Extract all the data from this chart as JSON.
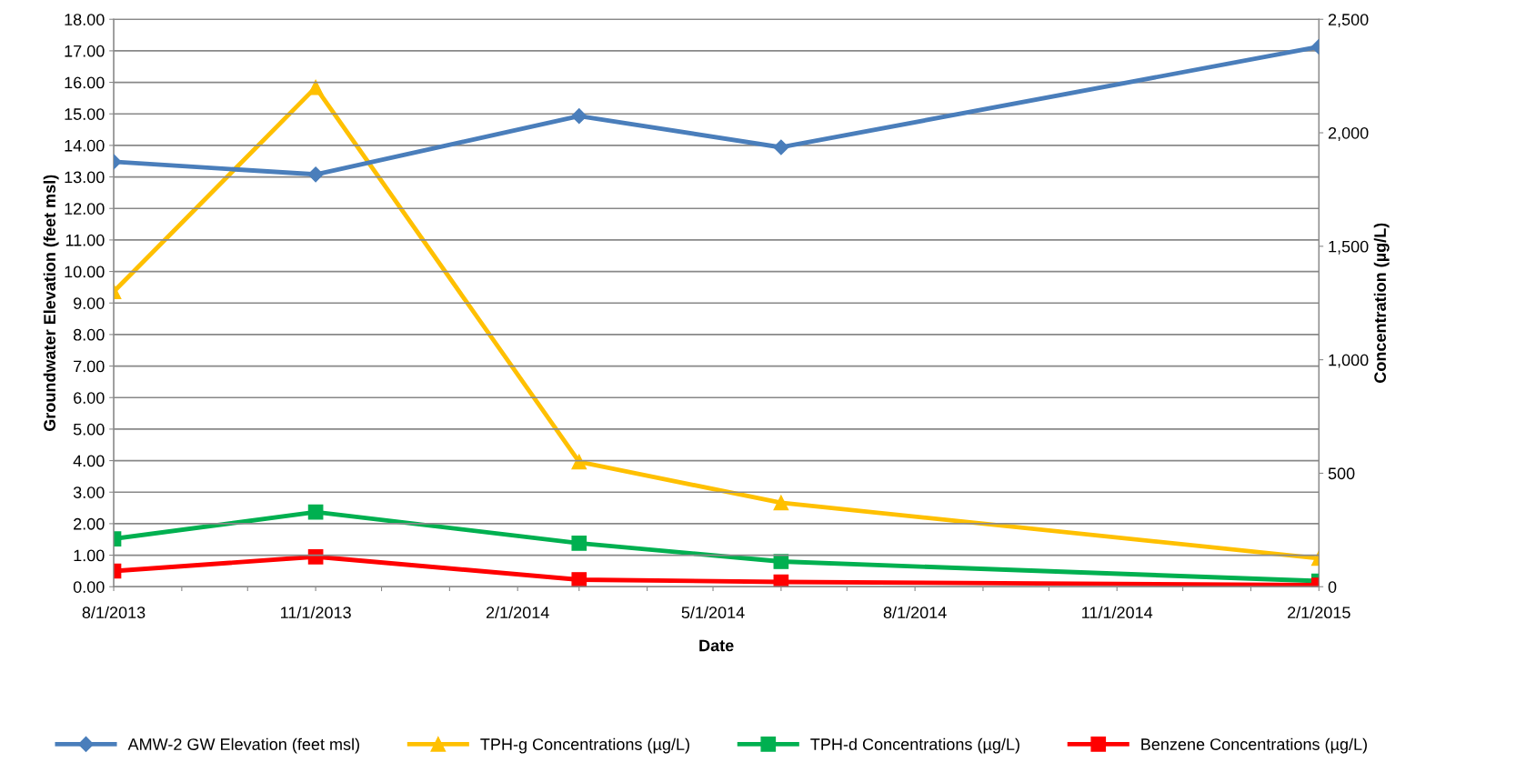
{
  "chart_data": {
    "type": "line",
    "xlabel": "Date",
    "ylabel": "Groundwater Elevation (feet msl)",
    "y2label": "Concentration (µg/L)",
    "x": [
      "2013-08-01",
      "2013-11-01",
      "2014-03-01",
      "2014-06-01",
      "2015-02-01"
    ],
    "series": [
      {
        "name": "AMW-2 GW Elevation (feet msl)",
        "color": "#4a7ebb",
        "marker": "diamond",
        "values": [
          13.48,
          13.08,
          14.93,
          13.94,
          17.13
        ]
      },
      {
        "name": "TPH-g Concentrations (µg/L)",
        "color": "#ffc000",
        "marker": "triangle",
        "axis": "y2",
        "values": [
          1300,
          2200,
          550,
          370,
          125
        ]
      },
      {
        "name": "TPH-d Concentrations (µg/L)",
        "color": "#00b050",
        "marker": "square",
        "axis": "y2",
        "values": [
          211,
          329,
          192,
          111,
          25
        ]
      },
      {
        "name": "Benzene Concentrations (µg/L)",
        "color": "#ff0000",
        "marker": "square",
        "axis": "y2",
        "values": [
          69,
          132,
          31,
          21,
          7
        ]
      }
    ],
    "xlim": [
      "2013-08-01",
      "2015-02-01"
    ],
    "xticks": [
      {
        "value": "2013-08-01",
        "label": "8/1/2013"
      },
      {
        "value": "2013-09-01",
        "label": null
      },
      {
        "value": "2013-10-01",
        "label": null
      },
      {
        "value": "2013-11-01",
        "label": "11/1/2013"
      },
      {
        "value": "2013-12-01",
        "label": null
      },
      {
        "value": "2014-01-01",
        "label": null
      },
      {
        "value": "2014-02-01",
        "label": "2/1/2014"
      },
      {
        "value": "2014-03-01",
        "label": null
      },
      {
        "value": "2014-04-01",
        "label": null
      },
      {
        "value": "2014-05-01",
        "label": "5/1/2014"
      },
      {
        "value": "2014-06-01",
        "label": null
      },
      {
        "value": "2014-07-01",
        "label": null
      },
      {
        "value": "2014-08-01",
        "label": "8/1/2014"
      },
      {
        "value": "2014-09-01",
        "label": null
      },
      {
        "value": "2014-10-01",
        "label": null
      },
      {
        "value": "2014-11-01",
        "label": "11/1/2014"
      },
      {
        "value": "2014-12-01",
        "label": null
      },
      {
        "value": "2015-01-01",
        "label": null
      },
      {
        "value": "2015-02-01",
        "label": "2/1/2015"
      }
    ],
    "ylim": [
      0,
      18
    ],
    "yticks": [
      {
        "value": 0,
        "label": "0.00"
      },
      {
        "value": 1,
        "label": "1.00"
      },
      {
        "value": 2,
        "label": "2.00"
      },
      {
        "value": 3,
        "label": "3.00"
      },
      {
        "value": 4,
        "label": "4.00"
      },
      {
        "value": 5,
        "label": "5.00"
      },
      {
        "value": 6,
        "label": "6.00"
      },
      {
        "value": 7,
        "label": "7.00"
      },
      {
        "value": 8,
        "label": "8.00"
      },
      {
        "value": 9,
        "label": "9.00"
      },
      {
        "value": 10,
        "label": "10.00"
      },
      {
        "value": 11,
        "label": "11.00"
      },
      {
        "value": 12,
        "label": "12.00"
      },
      {
        "value": 13,
        "label": "13.00"
      },
      {
        "value": 14,
        "label": "14.00"
      },
      {
        "value": 15,
        "label": "15.00"
      },
      {
        "value": 16,
        "label": "16.00"
      },
      {
        "value": 17,
        "label": "17.00"
      },
      {
        "value": 18,
        "label": "18.00"
      }
    ],
    "y2lim": [
      0,
      2500
    ],
    "y2ticks": [
      0,
      500,
      {
        "value": 1000,
        "label": "1,000"
      },
      {
        "value": 1500,
        "label": "1,500"
      },
      {
        "value": 2000,
        "label": "2,000"
      },
      {
        "value": 2500,
        "label": "2,500"
      }
    ],
    "grid": "y",
    "legend": "bottom",
    "line_style": "solid"
  }
}
